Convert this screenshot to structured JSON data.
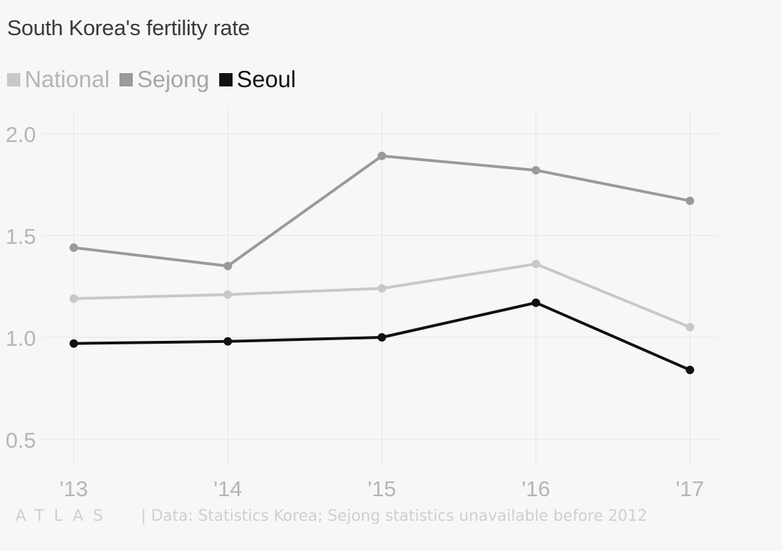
{
  "title": "South Korea's fertility rate",
  "legend": [
    {
      "label": "National",
      "color": "#c8c8c8",
      "text_color": "#b5b5b5"
    },
    {
      "label": "Sejong",
      "color": "#9a9a9a",
      "text_color": "#a5a5a5"
    },
    {
      "label": "Seoul",
      "color": "#111111",
      "text_color": "#111111"
    }
  ],
  "footer": {
    "logo": "ATLAS",
    "source": "| Data: Statistics Korea; Sejong statistics unavailable before 2012"
  },
  "chart_data": {
    "type": "line",
    "title": "South Korea's fertility rate",
    "categories": [
      "'13",
      "'14",
      "'15",
      "'16",
      "'17"
    ],
    "series": [
      {
        "name": "National",
        "values": [
          1.19,
          1.21,
          1.24,
          1.36,
          1.05
        ],
        "color": "#c8c8c8"
      },
      {
        "name": "Sejong",
        "values": [
          1.44,
          1.35,
          1.89,
          1.82,
          1.67
        ],
        "color": "#9a9a9a"
      },
      {
        "name": "Seoul",
        "values": [
          0.97,
          0.98,
          1.0,
          1.17,
          0.84
        ],
        "color": "#111111"
      }
    ],
    "yticks": [
      "2.0",
      "1.5",
      "1.0",
      "0.5"
    ],
    "ytick_values": [
      2.0,
      1.5,
      1.0,
      0.5
    ],
    "ylim": [
      0.5,
      2.0
    ],
    "xlabel": "",
    "ylabel": "",
    "grid": true
  }
}
